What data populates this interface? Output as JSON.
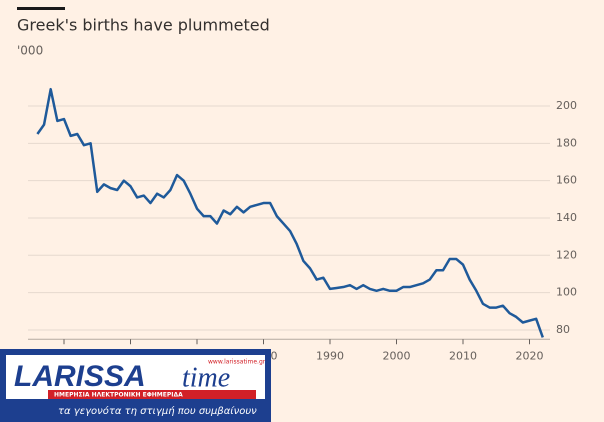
{
  "chart_data": {
    "type": "line",
    "title": "Greek's births have plummeted",
    "subtitle": "'000",
    "x": [
      1946,
      1947,
      1948,
      1949,
      1950,
      1951,
      1952,
      1953,
      1954,
      1955,
      1956,
      1957,
      1958,
      1959,
      1960,
      1961,
      1962,
      1963,
      1964,
      1965,
      1966,
      1967,
      1968,
      1969,
      1970,
      1971,
      1972,
      1973,
      1974,
      1975,
      1976,
      1977,
      1978,
      1979,
      1980,
      1981,
      1982,
      1983,
      1984,
      1985,
      1986,
      1987,
      1988,
      1989,
      1990,
      1991,
      1992,
      1993,
      1994,
      1995,
      1996,
      1997,
      1998,
      1999,
      2000,
      2001,
      2002,
      2003,
      2004,
      2005,
      2006,
      2007,
      2008,
      2009,
      2010,
      2011,
      2012,
      2013,
      2014,
      2015,
      2016,
      2017,
      2018,
      2019,
      2020,
      2021,
      2022
    ],
    "series": [
      {
        "name": "Births",
        "color": "#1f5a9a",
        "values": [
          185,
          190,
          209,
          192,
          193,
          184,
          185,
          179,
          180,
          154,
          158,
          156,
          155,
          160,
          157,
          151,
          152,
          148,
          153,
          151,
          155,
          163,
          160,
          153,
          145,
          141,
          141,
          137,
          144,
          142,
          146,
          143,
          146,
          147,
          148,
          148,
          141,
          137,
          133,
          126,
          117,
          113,
          107,
          108,
          102,
          102.5,
          103,
          104,
          102,
          104,
          102,
          101,
          102,
          101,
          101,
          103,
          103,
          104,
          105,
          107,
          112,
          112,
          118,
          118,
          115,
          107,
          101,
          94,
          92,
          92,
          93,
          89,
          87,
          84,
          85,
          86,
          76
        ]
      }
    ],
    "xlim": [
      1945,
      2023
    ],
    "xticks": [
      1950,
      1960,
      1970,
      1980,
      1990,
      2000,
      2010,
      2020
    ],
    "ylim": [
      75,
      215
    ],
    "yticks": [
      80,
      100,
      120,
      140,
      160,
      180,
      200
    ],
    "grid": true
  },
  "watermark": {
    "brand": "LARISSA",
    "brand2": "time",
    "url": "www.larissatime.gr",
    "tagline": "ΗΜΕΡΗΣΙΑ ΗΛΕΚΤΡΟΝΙΚΗ ΕΦΗΜΕΡΙΔΑ",
    "motto": "τα γεγονότα τη στιγμή που συμβαίνουν"
  }
}
